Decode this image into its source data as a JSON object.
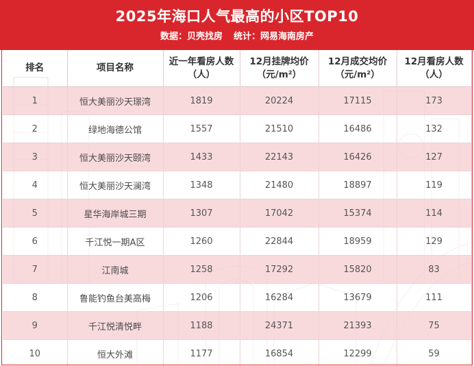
{
  "header": {
    "title": "2025年海口人气最高的小区TOP10",
    "source": "数据：贝壳找房",
    "compiler": "统计：网易海南房产"
  },
  "colors": {
    "banner": "#d9262c",
    "row_highlight": "#f6d2d6",
    "row_plain": "#ffffff"
  },
  "chart_data": {
    "type": "table",
    "columns": [
      "排名",
      "项目名称",
      "近一年看房人数（人）",
      "12月挂牌均价（元/m²）",
      "12月成交均价（元/m²）",
      "12月看房人数（人）"
    ],
    "header_lines": [
      [
        "排名",
        ""
      ],
      [
        "项目名称",
        ""
      ],
      [
        "近一年看房人数",
        "（人）"
      ],
      [
        "12月挂牌均价",
        "（元/m²）"
      ],
      [
        "12月成交均价",
        "（元/m²）"
      ],
      [
        "12月看房人数",
        "（人）"
      ]
    ],
    "rows": [
      {
        "rank": "1",
        "name": "恒大美丽沙天璟湾",
        "year_viewers": "1819",
        "listing_price": "20224",
        "deal_price": "17115",
        "dec_viewers": "173"
      },
      {
        "rank": "2",
        "name": "绿地海德公馆",
        "year_viewers": "1557",
        "listing_price": "21510",
        "deal_price": "16486",
        "dec_viewers": "132"
      },
      {
        "rank": "3",
        "name": "恒大美丽沙天颐湾",
        "year_viewers": "1433",
        "listing_price": "22143",
        "deal_price": "16426",
        "dec_viewers": "127"
      },
      {
        "rank": "4",
        "name": "恒大美丽沙天澜湾",
        "year_viewers": "1348",
        "listing_price": "21480",
        "deal_price": "18897",
        "dec_viewers": "119"
      },
      {
        "rank": "5",
        "name": "星华海岸城三期",
        "year_viewers": "1307",
        "listing_price": "17042",
        "deal_price": "15374",
        "dec_viewers": "114"
      },
      {
        "rank": "6",
        "name": "千江悦一期A区",
        "year_viewers": "1260",
        "listing_price": "22844",
        "deal_price": "18959",
        "dec_viewers": "129"
      },
      {
        "rank": "7",
        "name": "江南城",
        "year_viewers": "1258",
        "listing_price": "17292",
        "deal_price": "15820",
        "dec_viewers": "83"
      },
      {
        "rank": "8",
        "name": "鲁能钓鱼台美高梅",
        "year_viewers": "1206",
        "listing_price": "16284",
        "deal_price": "13679",
        "dec_viewers": "111"
      },
      {
        "rank": "9",
        "name": "千江悦清悦畔",
        "year_viewers": "1188",
        "listing_price": "24371",
        "deal_price": "21393",
        "dec_viewers": "75"
      },
      {
        "rank": "10",
        "name": "恒大外滩",
        "year_viewers": "1177",
        "listing_price": "16854",
        "deal_price": "12299",
        "dec_viewers": "59"
      }
    ]
  }
}
